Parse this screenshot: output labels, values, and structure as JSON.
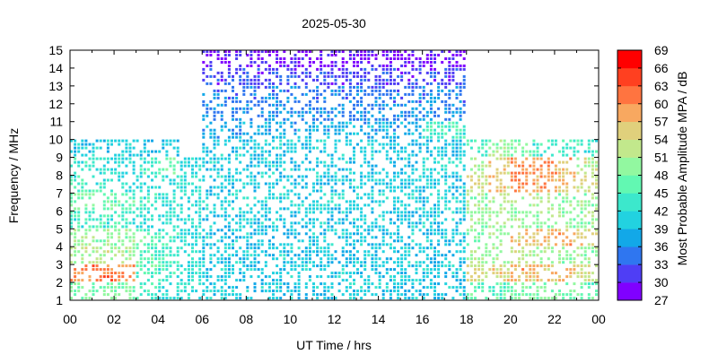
{
  "chart_data": {
    "type": "heatmap",
    "title": "2025-05-30",
    "xlabel": "UT Time / hrs",
    "ylabel": "Frequency / MHz",
    "colorbar_label": "Most Probable Amplitude MPA / dB",
    "xlim": [
      0,
      24
    ],
    "ylim": [
      1,
      15
    ],
    "x_tick_labels": [
      "00",
      "02",
      "04",
      "06",
      "08",
      "10",
      "12",
      "14",
      "16",
      "18",
      "20",
      "22",
      "00"
    ],
    "y_tick_labels": [
      "1",
      "2",
      "3",
      "4",
      "5",
      "6",
      "7",
      "8",
      "9",
      "10",
      "11",
      "12",
      "13",
      "14",
      "15"
    ],
    "colorbar_range": [
      27,
      69
    ],
    "colorbar_tick_labels": [
      "27",
      "30",
      "33",
      "36",
      "39",
      "42",
      "45",
      "48",
      "51",
      "54",
      "57",
      "60",
      "63",
      "66",
      "69"
    ],
    "colorbar_colors": [
      "#8000ff",
      "#4f3ef5",
      "#2f76f0",
      "#12a8e8",
      "#22d2e0",
      "#3ce8cc",
      "#62f8b2",
      "#92f8a0",
      "#c2e88c",
      "#e0d07c",
      "#f8a860",
      "#ff7440",
      "#ff4020",
      "#ff0000"
    ],
    "grid": false,
    "bin_hours": 1,
    "bin_mhz": 1,
    "mpa_db_by_frequency_band": [
      {
        "band": "1-2",
        "values": [
          48,
          48,
          48,
          44,
          42,
          42,
          40,
          40,
          40,
          40,
          40,
          40,
          40,
          40,
          40,
          40,
          40,
          40,
          46,
          46,
          48,
          48,
          48,
          46
        ]
      },
      {
        "band": "2-3",
        "values": [
          60,
          62,
          60,
          46,
          44,
          42,
          40,
          40,
          40,
          40,
          40,
          40,
          40,
          40,
          40,
          40,
          40,
          40,
          54,
          56,
          58,
          56,
          56,
          54
        ]
      },
      {
        "band": "3-4",
        "values": [
          52,
          52,
          50,
          46,
          44,
          42,
          40,
          40,
          40,
          40,
          40,
          40,
          40,
          40,
          40,
          40,
          40,
          40,
          50,
          50,
          52,
          50,
          50,
          50
        ]
      },
      {
        "band": "4-5",
        "values": [
          50,
          50,
          50,
          46,
          44,
          42,
          40,
          40,
          40,
          40,
          40,
          40,
          40,
          40,
          40,
          40,
          40,
          40,
          48,
          50,
          56,
          58,
          58,
          56
        ]
      },
      {
        "band": "5-6",
        "values": [
          44,
          44,
          44,
          42,
          42,
          42,
          40,
          40,
          40,
          40,
          40,
          40,
          40,
          40,
          40,
          40,
          40,
          40,
          50,
          50,
          50,
          50,
          50,
          50
        ]
      },
      {
        "band": "6-7",
        "values": [
          48,
          48,
          46,
          44,
          42,
          42,
          41,
          41,
          41,
          41,
          41,
          41,
          41,
          41,
          41,
          41,
          41,
          41,
          50,
          52,
          52,
          52,
          50,
          50
        ]
      },
      {
        "band": "7-8",
        "values": [
          44,
          44,
          42,
          42,
          42,
          42,
          40,
          40,
          40,
          40,
          40,
          40,
          40,
          40,
          40,
          40,
          40,
          40,
          54,
          56,
          60,
          58,
          56,
          54
        ]
      },
      {
        "band": "8-9",
        "values": [
          44,
          42,
          42,
          44,
          46,
          42,
          40,
          40,
          40,
          40,
          40,
          40,
          40,
          40,
          40,
          40,
          42,
          42,
          50,
          56,
          60,
          60,
          58,
          52
        ]
      },
      {
        "band": "9-10",
        "values": [
          40,
          40,
          40,
          40,
          40,
          null,
          40,
          40,
          40,
          40,
          40,
          40,
          40,
          40,
          40,
          40,
          40,
          40,
          44,
          50,
          48,
          44,
          44,
          44
        ]
      },
      {
        "band": "10-11",
        "values": [
          null,
          null,
          null,
          null,
          null,
          null,
          38,
          38,
          38,
          38,
          38,
          38,
          38,
          38,
          38,
          38,
          44,
          44,
          null,
          null,
          null,
          null,
          null,
          null
        ]
      },
      {
        "band": "11-12",
        "values": [
          null,
          null,
          null,
          null,
          null,
          null,
          36,
          36,
          36,
          36,
          36,
          36,
          36,
          36,
          36,
          36,
          36,
          36,
          null,
          null,
          null,
          null,
          null,
          null
        ]
      },
      {
        "band": "12-13",
        "values": [
          null,
          null,
          null,
          null,
          null,
          null,
          35,
          35,
          35,
          35,
          35,
          35,
          35,
          35,
          35,
          35,
          35,
          35,
          null,
          null,
          null,
          null,
          null,
          null
        ]
      },
      {
        "band": "13-14",
        "values": [
          null,
          null,
          null,
          null,
          null,
          null,
          32,
          32,
          32,
          32,
          32,
          32,
          32,
          32,
          32,
          32,
          32,
          32,
          null,
          null,
          null,
          null,
          null,
          null
        ]
      },
      {
        "band": "14-15",
        "values": [
          null,
          null,
          null,
          null,
          null,
          null,
          29,
          29,
          29,
          29,
          29,
          29,
          29,
          29,
          29,
          29,
          29,
          29,
          null,
          null,
          null,
          null,
          null,
          null
        ]
      }
    ]
  }
}
